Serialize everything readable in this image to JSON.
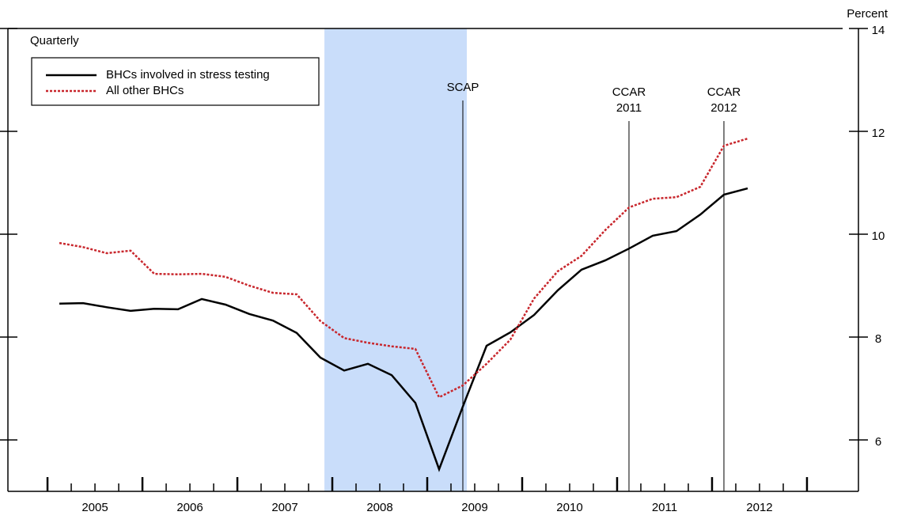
{
  "chart_data": {
    "type": "line",
    "y_axis_label": "Percent",
    "frequency_note": "Quarterly",
    "x": [
      2005.125,
      2005.375,
      2005.625,
      2005.875,
      2006.125,
      2006.375,
      2006.625,
      2006.875,
      2007.125,
      2007.375,
      2007.625,
      2007.875,
      2008.125,
      2008.375,
      2008.625,
      2008.875,
      2009.125,
      2009.375,
      2009.625,
      2009.875,
      2010.125,
      2010.375,
      2010.625,
      2010.875,
      2011.125,
      2011.375,
      2011.625,
      2011.875,
      2012.125,
      2012.375
    ],
    "series": [
      {
        "name": "BHCs involved in stress testing",
        "color": "#000000",
        "dash": "solid",
        "values": [
          8.65,
          8.66,
          8.58,
          8.51,
          8.55,
          8.54,
          8.74,
          8.63,
          8.45,
          8.32,
          8.08,
          7.6,
          7.35,
          7.48,
          7.26,
          6.72,
          5.43,
          6.65,
          7.83,
          8.09,
          8.43,
          8.91,
          9.31,
          9.49,
          9.72,
          9.97,
          10.06,
          10.38,
          10.77,
          10.89
        ]
      },
      {
        "name": "All other BHCs",
        "color": "#c8262c",
        "dash": "dotted",
        "values": [
          9.83,
          9.75,
          9.63,
          9.68,
          9.23,
          9.22,
          9.23,
          9.17,
          9.0,
          8.86,
          8.83,
          8.31,
          7.98,
          7.89,
          7.82,
          7.77,
          6.83,
          7.06,
          7.48,
          7.95,
          8.75,
          9.28,
          9.58,
          10.08,
          10.52,
          10.69,
          10.72,
          10.92,
          11.72,
          11.86
        ]
      }
    ],
    "xlim": [
      2004.583,
      2013.542
    ],
    "xticks": [
      {
        "value": 2005,
        "label": "2005"
      },
      {
        "value": 2006,
        "label": "2006"
      },
      {
        "value": 2007,
        "label": "2007"
      },
      {
        "value": 2008,
        "label": "2008"
      },
      {
        "value": 2009,
        "label": "2009"
      },
      {
        "value": 2010,
        "label": "2010"
      },
      {
        "value": 2011,
        "label": "2011"
      },
      {
        "value": 2012,
        "label": "2012"
      },
      {
        "value": 2013,
        "label": null
      }
    ],
    "ylim": [
      5,
      14
    ],
    "yticks": [
      6,
      8,
      10,
      12,
      14
    ],
    "shaded_regions": [
      {
        "x0": 2007.917,
        "x1": 2009.417,
        "color": "#c9ddfa"
      }
    ],
    "event_lines": [
      {
        "x": 2009.375,
        "top": 12.6,
        "label_lines": [
          "SCAP"
        ]
      },
      {
        "x": 2011.125,
        "top": 12.2,
        "label_lines": [
          "CCAR",
          "2011"
        ]
      },
      {
        "x": 2012.125,
        "top": 12.2,
        "label_lines": [
          "CCAR",
          "2012"
        ]
      }
    ],
    "legend": "upper-left"
  }
}
